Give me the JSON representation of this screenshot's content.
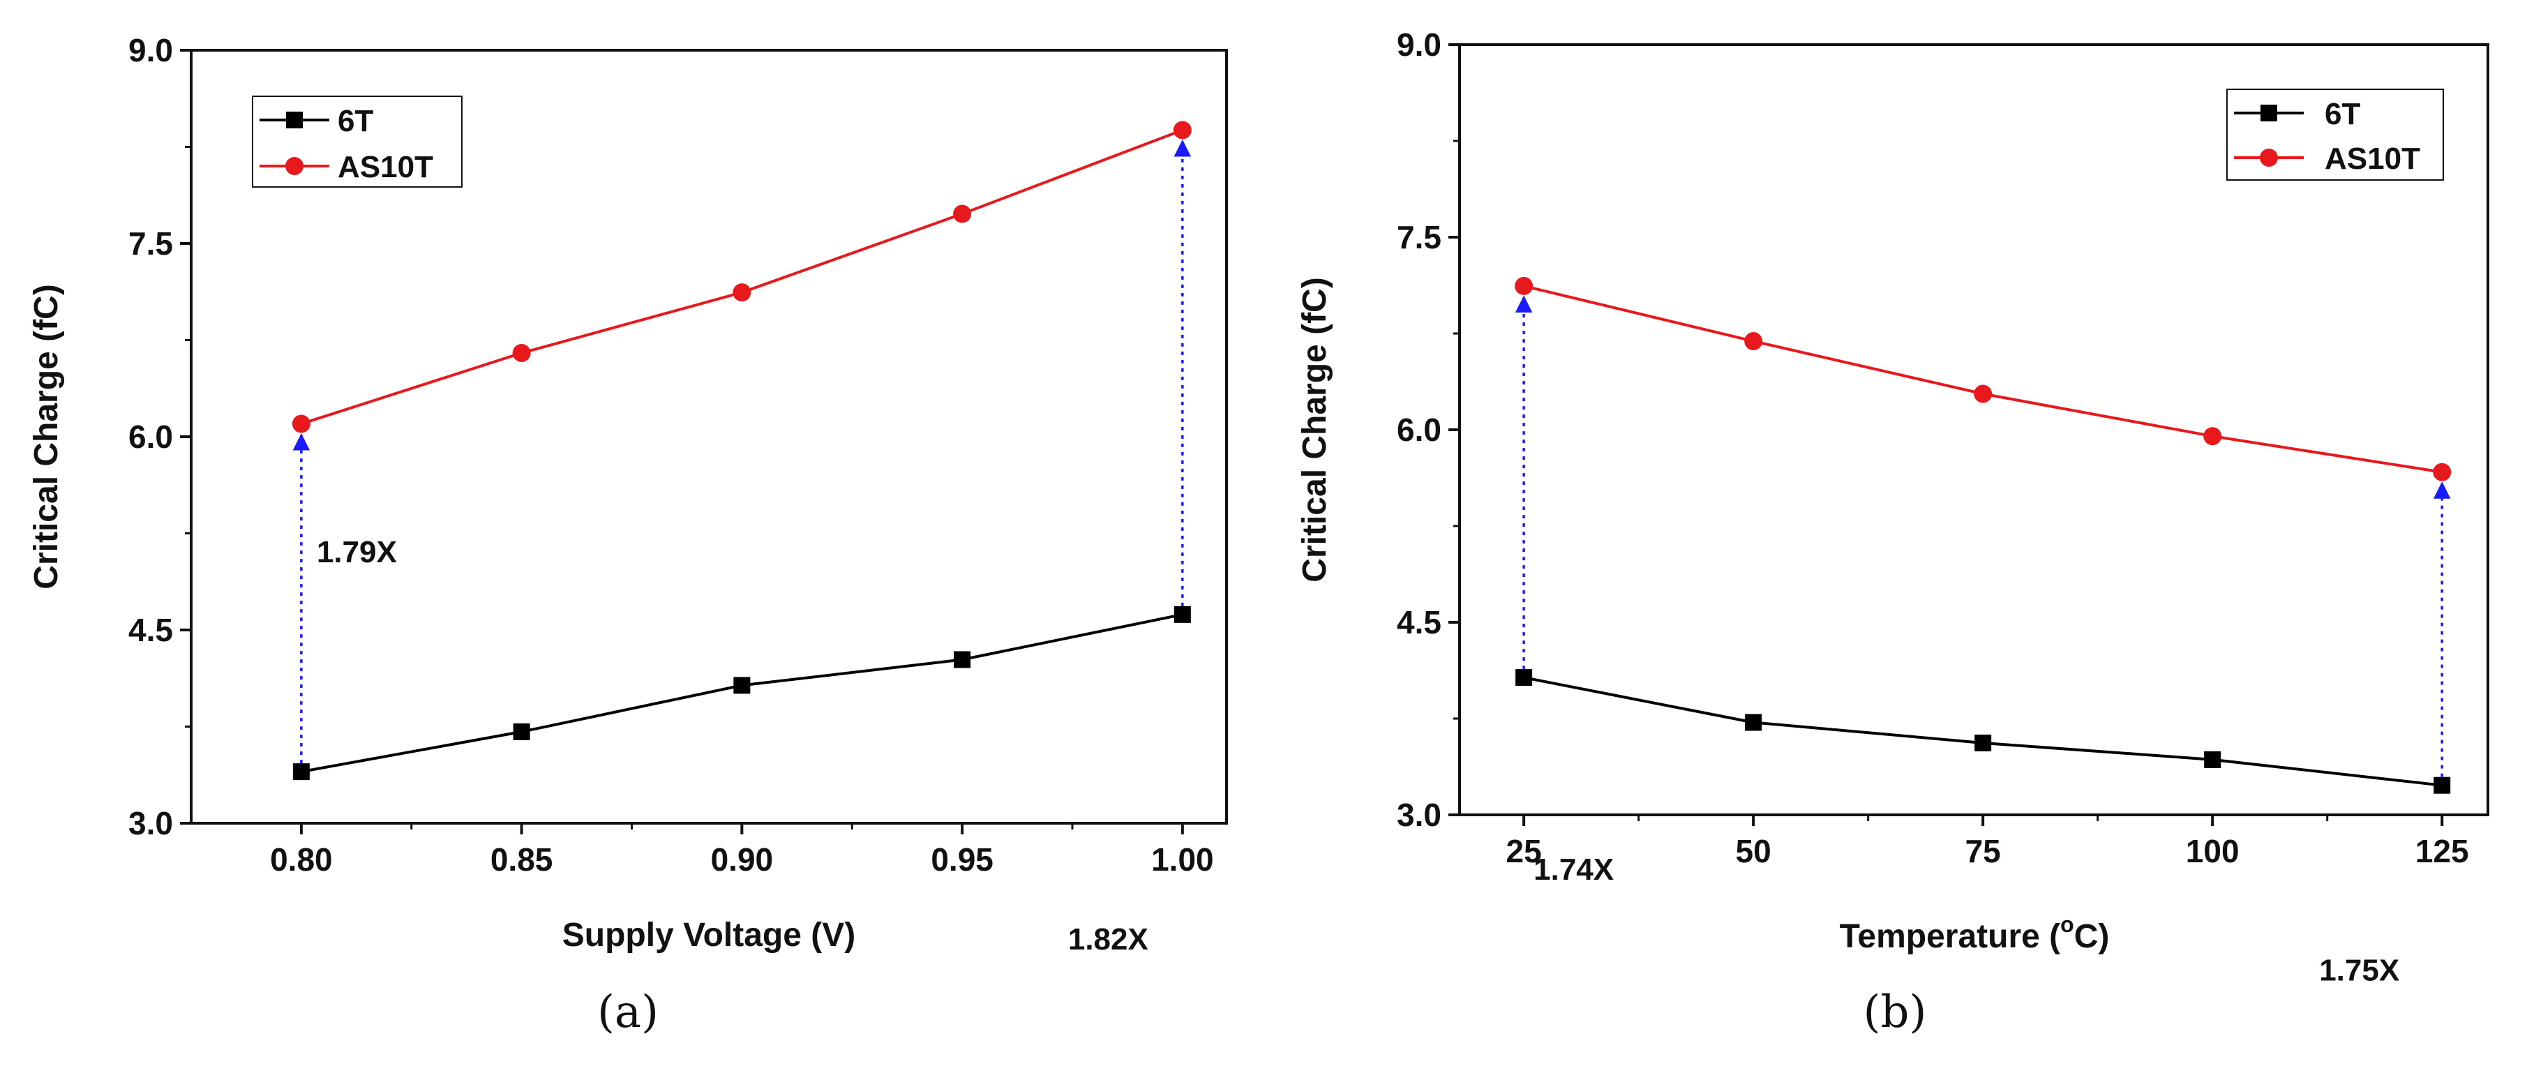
{
  "chart_data": [
    {
      "type": "line",
      "caption": "(a)",
      "xlabel": "Supply Voltage (V)",
      "ylabel": "Critical Charge (fC)",
      "x": [
        0.8,
        0.85,
        0.9,
        0.95,
        1.0
      ],
      "xticks": [
        "0.80",
        "0.85",
        "0.90",
        "0.95",
        "1.00"
      ],
      "xlim": [
        0.775,
        1.01
      ],
      "ylim": [
        3.0,
        9.0
      ],
      "yticks": [
        "3.0",
        "4.5",
        "6.0",
        "7.5",
        "9.0"
      ],
      "legend_position": "top-left",
      "series": [
        {
          "name": "6T",
          "color": "#000000",
          "marker": "square",
          "values": [
            3.4,
            3.71,
            4.07,
            4.27,
            4.62
          ]
        },
        {
          "name": "AS10T",
          "color": "#e8191c",
          "marker": "circle",
          "values": [
            6.1,
            6.65,
            7.12,
            7.73,
            8.38
          ]
        }
      ],
      "annotations": [
        {
          "label": "1.79X",
          "x": 0.8,
          "from": 3.4,
          "to": 6.1
        },
        {
          "label": "1.82X",
          "x": 1.0,
          "from": 4.62,
          "to": 8.38
        }
      ]
    },
    {
      "type": "line",
      "caption": "(b)",
      "xlabel_main": "Temperature (",
      "xlabel_sup": "o",
      "xlabel_end": "C)",
      "ylabel": "Critical Charge (fC)",
      "x": [
        25,
        50,
        75,
        100,
        125
      ],
      "xticks": [
        "25",
        "50",
        "75",
        "100",
        "125"
      ],
      "xlim": [
        18,
        130
      ],
      "ylim": [
        3.0,
        9.0
      ],
      "yticks": [
        "3.0",
        "4.5",
        "6.0",
        "7.5",
        "9.0"
      ],
      "legend_position": "top-right",
      "series": [
        {
          "name": "6T",
          "color": "#000000",
          "marker": "square",
          "values": [
            4.07,
            3.72,
            3.56,
            3.43,
            3.23
          ]
        },
        {
          "name": "AS10T",
          "color": "#e8191c",
          "marker": "circle",
          "values": [
            7.12,
            6.69,
            6.28,
            5.95,
            5.67
          ]
        }
      ],
      "annotations": [
        {
          "label": "1.74X",
          "x": 25,
          "from": 4.07,
          "to": 7.12
        },
        {
          "label": "1.75X",
          "x": 125,
          "from": 3.23,
          "to": 5.67
        }
      ]
    }
  ]
}
